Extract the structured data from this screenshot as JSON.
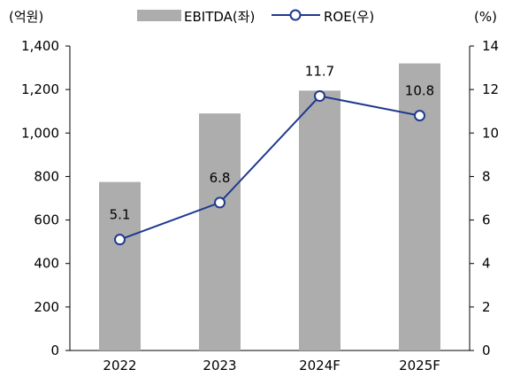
{
  "chart_data": {
    "type": "bar+line",
    "categories": [
      "2022",
      "2023",
      "2024F",
      "2025F"
    ],
    "series": [
      {
        "name": "EBITDA(좌)",
        "type": "bar",
        "axis": "left",
        "color": "#adadad",
        "values": [
          775,
          1090,
          1195,
          1320
        ]
      },
      {
        "name": "ROE(우)",
        "type": "line",
        "axis": "right",
        "color": "#1f3a8f",
        "values": [
          5.1,
          6.8,
          11.7,
          10.8
        ],
        "labels": [
          "5.1",
          "6.8",
          "11.7",
          "10.8"
        ]
      }
    ],
    "left_axis": {
      "unit_label": "(억원)",
      "ylim": [
        0,
        1400
      ],
      "ticks": [
        "0",
        "200",
        "400",
        "600",
        "800",
        "1,000",
        "1,200",
        "1,400"
      ]
    },
    "right_axis": {
      "unit_label": "(%)",
      "ylim": [
        0,
        14
      ],
      "ticks": [
        "0",
        "2",
        "4",
        "6",
        "8",
        "10",
        "12",
        "14"
      ]
    },
    "grid": false,
    "legend_position": "top-center"
  }
}
